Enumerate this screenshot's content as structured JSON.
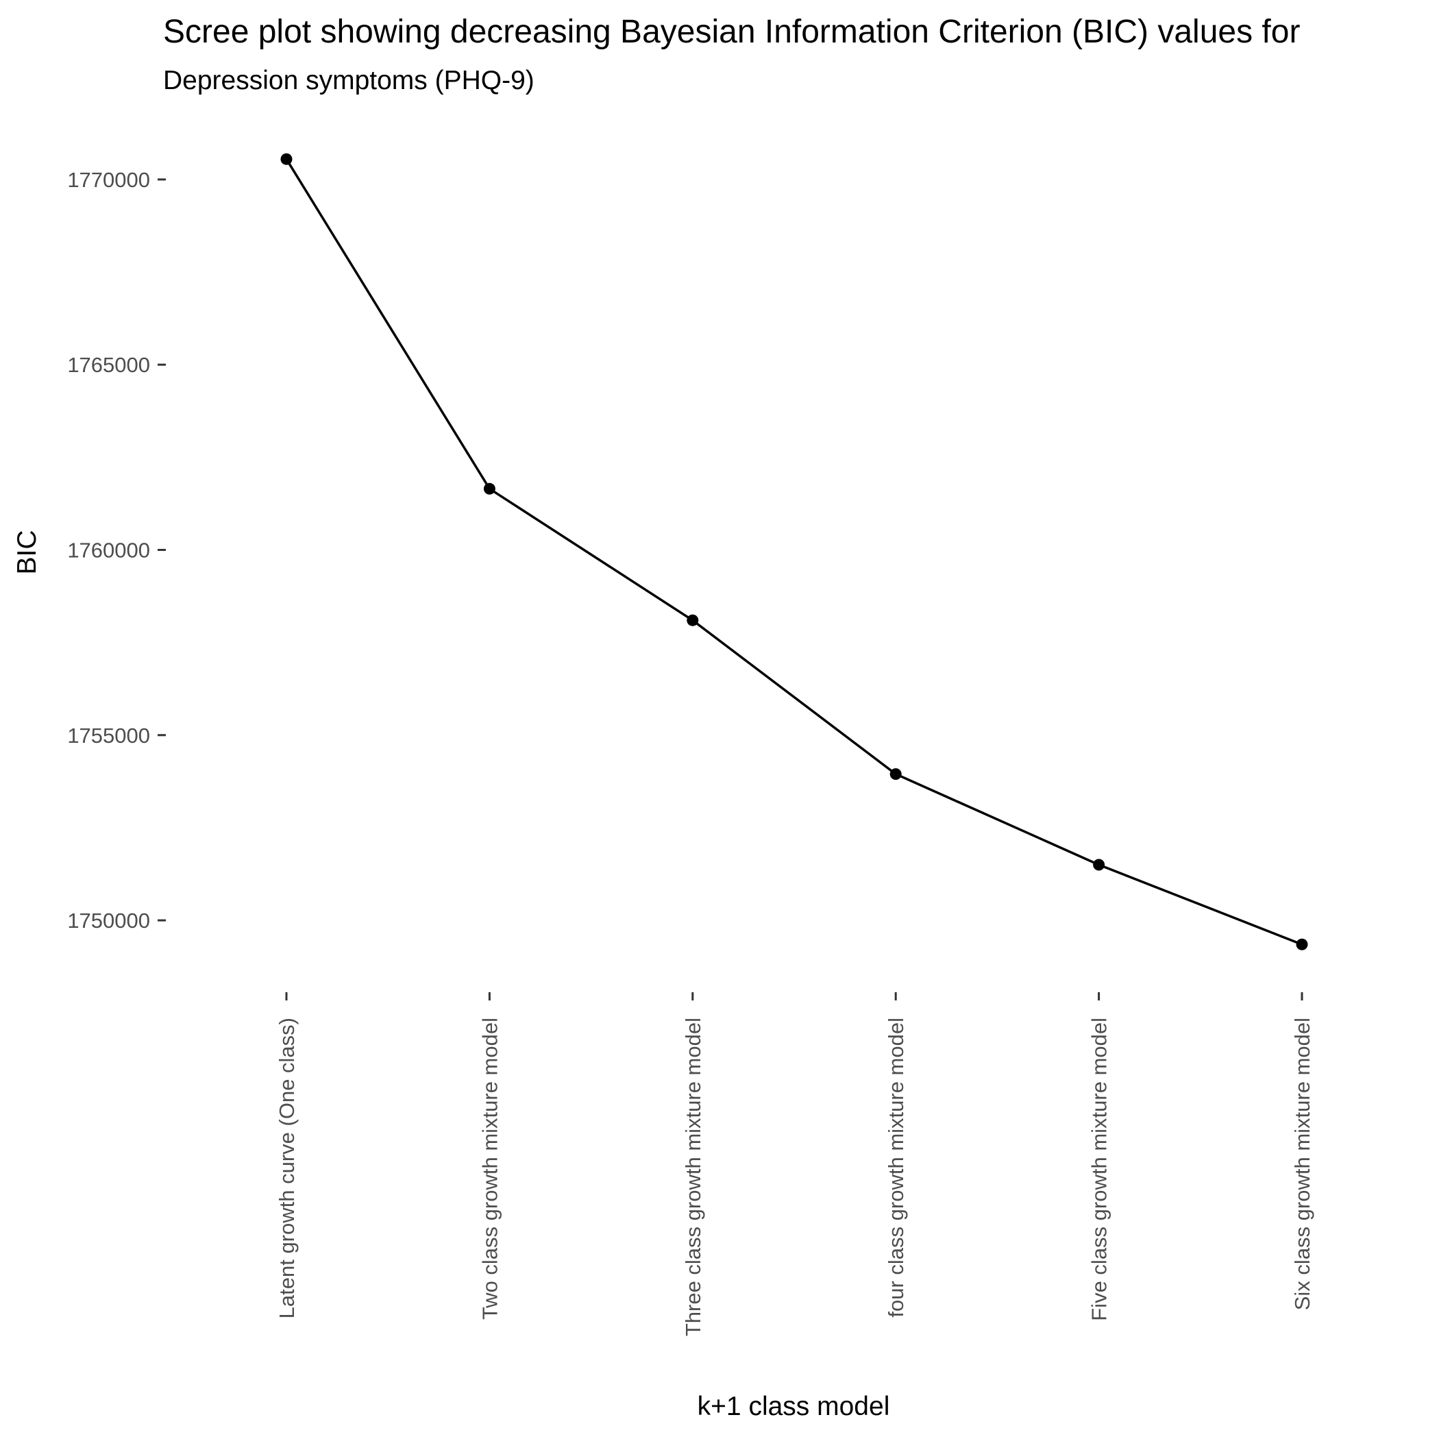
{
  "chart_data": {
    "type": "line",
    "title": "Scree plot showing decreasing Bayesian Information Criterion (BIC) values for",
    "subtitle": "Depression symptoms (PHQ-9)",
    "xlabel": "k+1 class model",
    "ylabel": "BIC",
    "categories": [
      "Latent growth curve (One class)",
      "Two class growth mixture model",
      "Three class growth mixture model",
      "four class growth mixture model",
      "Five class growth mixture model",
      "Six class growth mixture model"
    ],
    "series": [
      {
        "values": [
          1770550,
          1761650,
          1758100,
          1753950,
          1751500,
          1749350
        ],
        "color": "#000000"
      }
    ],
    "yticks": [
      1750000,
      1755000,
      1760000,
      1765000,
      1770000
    ],
    "ytick_labels": [
      "1750000",
      "1755000",
      "1760000",
      "1765000",
      "1770000"
    ],
    "ylim": [
      1748300,
      1771700
    ],
    "grid": false,
    "legend": "none"
  }
}
